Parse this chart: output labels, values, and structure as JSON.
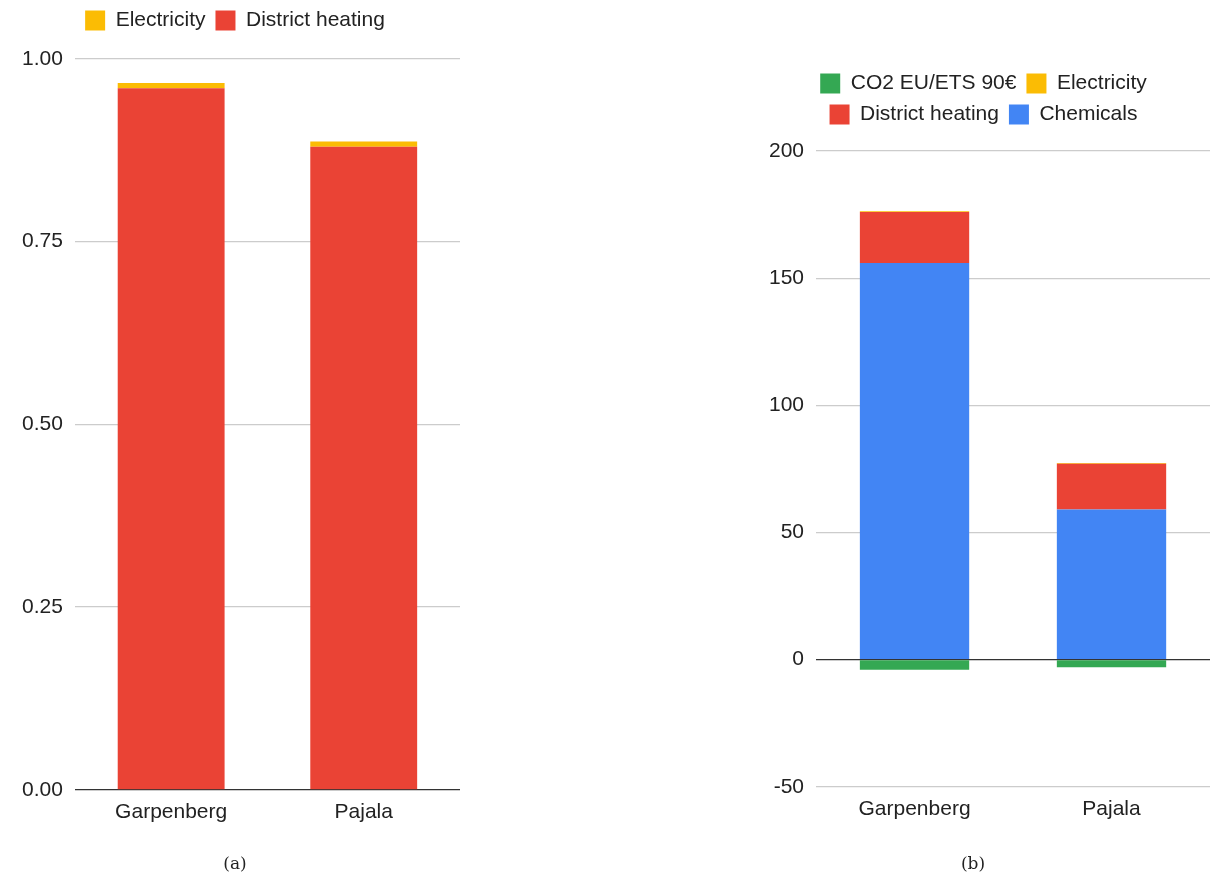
{
  "chart_data": [
    {
      "type": "bar",
      "stacked": true,
      "categories": [
        "Garpenberg",
        "Pajala"
      ],
      "series": [
        {
          "name": "District heating",
          "color": "#ea4335",
          "values": [
            0.96,
            0.88
          ]
        },
        {
          "name": "Electricity",
          "color": "#fbbc04",
          "values": [
            0.007,
            0.007
          ]
        }
      ],
      "ylim": [
        0,
        1
      ],
      "yticks": [
        {
          "value": 0,
          "label": "0.00"
        },
        {
          "value": 0.25,
          "label": "0.25"
        },
        {
          "value": 0.5,
          "label": "0.50"
        },
        {
          "value": 0.75,
          "label": "0.75"
        },
        {
          "value": 1,
          "label": "1.00"
        }
      ],
      "grid": "y",
      "legend": "top",
      "annotations": [
        "(a)"
      ]
    },
    {
      "type": "bar",
      "stacked": true,
      "categories": [
        "Garpenberg",
        "Pajala"
      ],
      "series": [
        {
          "name": "Chemicals",
          "color": "#4285f4",
          "values": [
            156,
            59
          ]
        },
        {
          "name": "District heating",
          "color": "#ea4335",
          "values": [
            20,
            18
          ]
        },
        {
          "name": "Electricity",
          "color": "#fbbc04",
          "values": [
            0.3,
            0.3
          ]
        },
        {
          "name": "CO2 EU/ETS 90€",
          "color": "#34a853",
          "values": [
            -4,
            -3
          ]
        }
      ],
      "ylim": [
        -50,
        200
      ],
      "yticks": [
        -50,
        0,
        50,
        100,
        150,
        200
      ],
      "grid": "y",
      "legend": "top",
      "annotations": [
        "(b)"
      ]
    }
  ]
}
